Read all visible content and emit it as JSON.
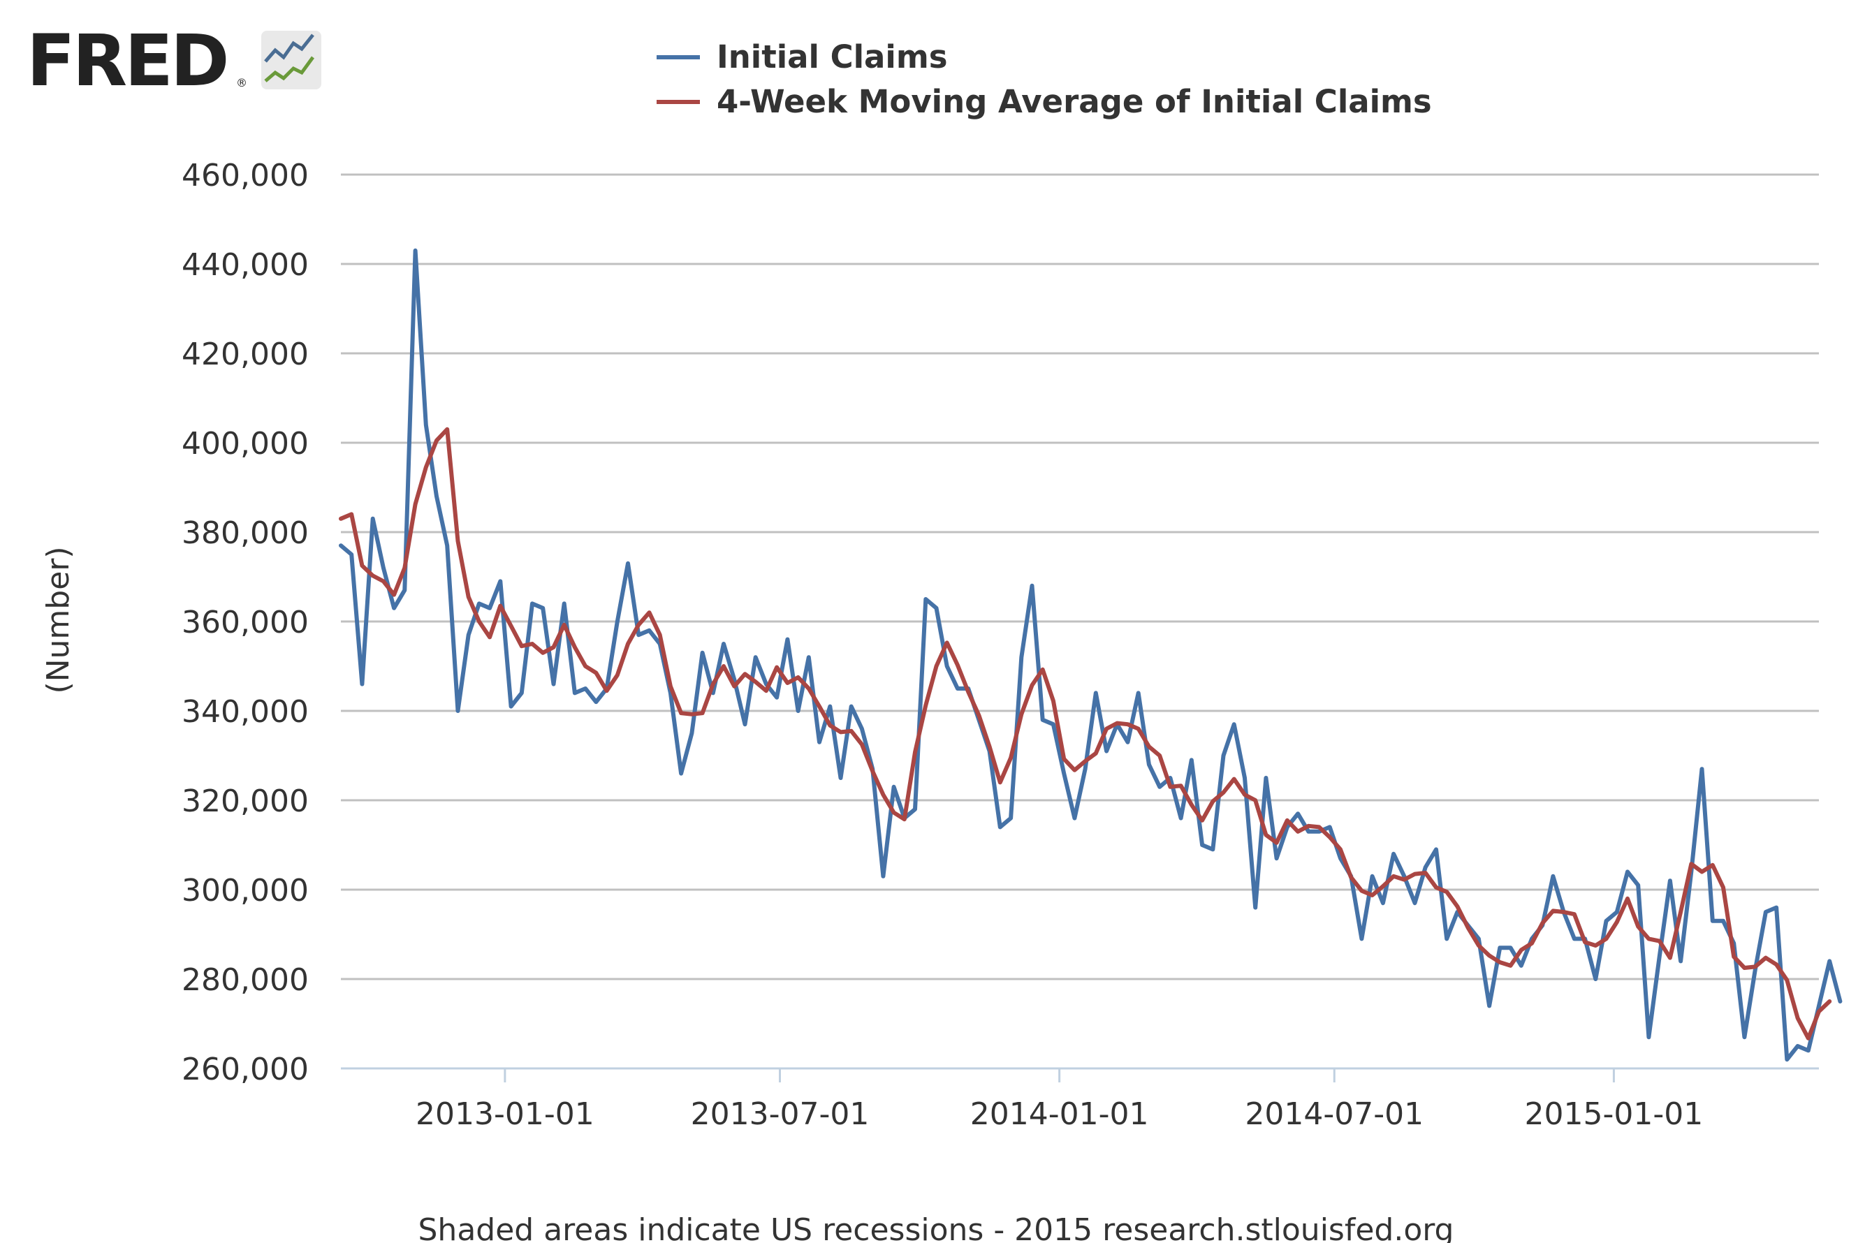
{
  "logo": {
    "text": "FRED",
    "mark": "®"
  },
  "chart_data": {
    "type": "line",
    "title": "",
    "xlabel": "",
    "ylabel": "(Number)",
    "ylim": [
      260000,
      460000
    ],
    "yticks": [
      260000,
      280000,
      300000,
      320000,
      340000,
      360000,
      380000,
      400000,
      420000,
      440000,
      460000
    ],
    "ytick_labels": [
      "260,000",
      "280,000",
      "300,000",
      "320,000",
      "340,000",
      "360,000",
      "380,000",
      "400,000",
      "420,000",
      "440,000",
      "460,000"
    ],
    "xlim": [
      "2012-09-15",
      "2015-05-16"
    ],
    "xticks": [
      "2013-01-01",
      "2013-07-01",
      "2014-01-01",
      "2014-07-01",
      "2015-01-01"
    ],
    "xtick_labels": [
      "2013-01-01",
      "2013-07-01",
      "2014-01-01",
      "2014-07-01",
      "2015-01-01"
    ],
    "grid": true,
    "legend_position": "top",
    "footer": "Shaded areas indicate US recessions - 2015 research.stlouisfed.org",
    "x_start": "2012-09-15",
    "x_step_days": 7,
    "series": [
      {
        "name": "Initial Claims",
        "color": "#4572a7",
        "values": [
          377000,
          375000,
          346000,
          383000,
          372000,
          363000,
          367000,
          443000,
          404000,
          388000,
          377000,
          340000,
          357000,
          364000,
          363000,
          369000,
          341000,
          344000,
          364000,
          363000,
          346000,
          364000,
          344000,
          345000,
          342000,
          345000,
          360000,
          373000,
          357000,
          358000,
          355000,
          344000,
          326000,
          335000,
          353000,
          344000,
          355000,
          347000,
          337000,
          352000,
          346000,
          343000,
          356000,
          340000,
          352000,
          333000,
          341000,
          325000,
          341000,
          336000,
          327000,
          303000,
          323000,
          316000,
          318000,
          365000,
          363000,
          350000,
          345000,
          345000,
          338000,
          331000,
          314000,
          316000,
          352000,
          368000,
          338000,
          337000,
          326000,
          316000,
          327000,
          344000,
          331000,
          337000,
          333000,
          344000,
          328000,
          323000,
          325000,
          316000,
          329000,
          310000,
          309000,
          330000,
          337000,
          325000,
          296000,
          325000,
          307000,
          314000,
          317000,
          313000,
          313000,
          314000,
          307000,
          303000,
          289000,
          303000,
          297000,
          308000,
          303000,
          297000,
          305000,
          309000,
          289000,
          295000,
          292000,
          289000,
          274000,
          287000,
          287000,
          283000,
          289000,
          292000,
          303000,
          295000,
          289000,
          289000,
          280000,
          293000,
          295000,
          304000,
          301000,
          267000,
          285000,
          302000,
          284000,
          304000,
          327000,
          293000,
          293000,
          288000,
          267000,
          282000,
          295000,
          296000,
          262000,
          265000,
          264000,
          274000,
          284000,
          275000
        ],
        "dx_first_step": 1.1
      },
      {
        "name": "4-Week Moving Average of Initial Claims",
        "color": "#aa4643",
        "values": [
          383000,
          384000,
          372500,
          370250,
          369000,
          366000,
          372000,
          386250,
          394500,
          400500,
          403000,
          378000,
          365500,
          360000,
          356500,
          363500,
          359000,
          354500,
          355000,
          353000,
          354250,
          359250,
          354250,
          350000,
          348500,
          344500,
          348000,
          355000,
          359250,
          362000,
          357000,
          345500,
          339500,
          339250,
          339500,
          346000,
          350000,
          345500,
          348250,
          346500,
          344500,
          349750,
          346250,
          347500,
          345000,
          341000,
          336750,
          335250,
          335500,
          332500,
          326500,
          321250,
          317250,
          315750,
          330750,
          341250,
          350000,
          355250,
          350250,
          344250,
          339000,
          332000,
          324000,
          329500,
          339250,
          345750,
          349250,
          342250,
          329250,
          326750,
          328750,
          330500,
          336000,
          337250,
          337000,
          336000,
          332000,
          330000,
          323000,
          323250,
          319000,
          315500,
          319750,
          321750,
          324750,
          321250,
          320000,
          312250,
          310500,
          315500,
          313000,
          314250,
          314000,
          311750,
          309000,
          302750,
          299750,
          298750,
          300750,
          303000,
          302250,
          303500,
          303750,
          300500,
          299500,
          296250,
          291500,
          287500,
          285250,
          283750,
          283000,
          286500,
          288000,
          292500,
          295250,
          295000,
          294500,
          288250,
          287500,
          289000,
          292750,
          298000,
          291750,
          289000,
          288500,
          284750,
          295000,
          305750,
          304000,
          305500,
          300500,
          285000,
          282500,
          282750,
          284750,
          283250,
          279750,
          271250,
          266750,
          272750,
          275000
        ],
        "dx_first_step": 1.0
      }
    ]
  }
}
